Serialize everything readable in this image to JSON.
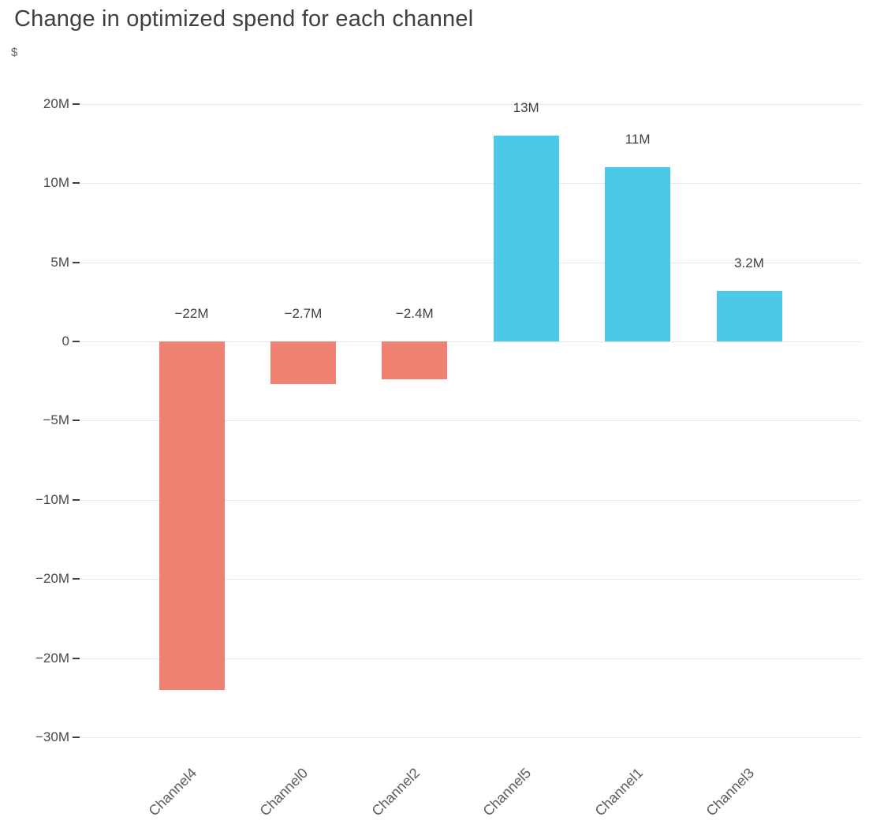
{
  "chart_data": {
    "type": "bar",
    "title": "Change in optimized spend for each channel",
    "ylabel": "$",
    "xlabel": "",
    "categories": [
      "Channel4",
      "Channel0",
      "Channel2",
      "Channel5",
      "Channel1",
      "Channel3"
    ],
    "values": [
      -22,
      -2.7,
      -2.4,
      13,
      11,
      3.2
    ],
    "value_labels": [
      "−22M",
      "−2.7M",
      "−2.4M",
      "13M",
      "11M",
      "3.2M"
    ],
    "y_ticks": [
      {
        "value": 15,
        "label": "20M"
      },
      {
        "value": 10,
        "label": "10M"
      },
      {
        "value": 5,
        "label": "5M"
      },
      {
        "value": 0,
        "label": "0"
      },
      {
        "value": -5,
        "label": "−5M"
      },
      {
        "value": -10,
        "label": "−10M"
      },
      {
        "value": -15,
        "label": "−20M"
      },
      {
        "value": -20,
        "label": "−20M"
      },
      {
        "value": -25,
        "label": "−30M"
      }
    ],
    "ylim": [
      -25,
      15
    ],
    "grid": true,
    "legend": false,
    "colors": {
      "positive": "#4BC9E6",
      "negative": "#EE8172",
      "title_text": "#3c4043",
      "axis_text": "#46494d",
      "gridline": "#e8e8e8"
    }
  }
}
